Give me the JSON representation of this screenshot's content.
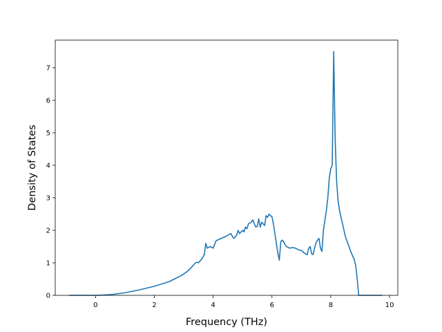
{
  "chart_data": {
    "type": "line",
    "title": "",
    "xlabel": "Frequency (THz)",
    "ylabel": "Density of States",
    "xlim": [
      -1.37,
      10.28
    ],
    "ylim": [
      0,
      7.85
    ],
    "xticks": [
      0,
      2,
      4,
      6,
      8,
      10
    ],
    "yticks": [
      0,
      1,
      2,
      3,
      4,
      5,
      6,
      7
    ],
    "grid": false,
    "colors": {
      "line": "#1f77b4",
      "axes": "#000000",
      "background": "#ffffff"
    },
    "series": [
      {
        "x": [
          -0.9,
          -0.5,
          0.0,
          0.3,
          0.6,
          1.0,
          1.5,
          2.0,
          2.5,
          2.9,
          3.1,
          3.2,
          3.3,
          3.4,
          3.45,
          3.5,
          3.55,
          3.6,
          3.7,
          3.75,
          3.8,
          3.85,
          3.9,
          4.0,
          4.1,
          4.2,
          4.3,
          4.4,
          4.5,
          4.6,
          4.7,
          4.8,
          4.85,
          4.9,
          5.0,
          5.05,
          5.1,
          5.15,
          5.2,
          5.3,
          5.35,
          5.4,
          5.45,
          5.5,
          5.55,
          5.6,
          5.65,
          5.7,
          5.75,
          5.8,
          5.85,
          5.9,
          5.95,
          6.0,
          6.05,
          6.1,
          6.15,
          6.2,
          6.25,
          6.3,
          6.35,
          6.4,
          6.45,
          6.5,
          6.6,
          6.7,
          6.8,
          6.9,
          7.0,
          7.1,
          7.2,
          7.25,
          7.3,
          7.35,
          7.4,
          7.45,
          7.5,
          7.55,
          7.6,
          7.65,
          7.7,
          7.75,
          7.8,
          7.85,
          7.9,
          7.95,
          8.0,
          8.05,
          8.1,
          8.15,
          8.2,
          8.25,
          8.3,
          8.4,
          8.5,
          8.6,
          8.7,
          8.8,
          8.85,
          8.9,
          8.95,
          9.0,
          9.5,
          9.75
        ],
        "y": [
          0.0,
          0.0,
          0.0,
          0.01,
          0.03,
          0.08,
          0.17,
          0.28,
          0.42,
          0.6,
          0.72,
          0.8,
          0.9,
          1.0,
          1.02,
          1.0,
          1.05,
          1.1,
          1.25,
          1.6,
          1.45,
          1.48,
          1.5,
          1.45,
          1.68,
          1.72,
          1.76,
          1.8,
          1.85,
          1.9,
          1.75,
          1.85,
          2.0,
          1.9,
          2.0,
          1.95,
          2.1,
          2.05,
          2.2,
          2.25,
          2.32,
          2.2,
          2.1,
          2.12,
          2.35,
          2.1,
          2.25,
          2.2,
          2.15,
          2.45,
          2.4,
          2.5,
          2.45,
          2.42,
          2.2,
          1.9,
          1.6,
          1.3,
          1.08,
          1.65,
          1.7,
          1.65,
          1.55,
          1.5,
          1.45,
          1.47,
          1.45,
          1.4,
          1.38,
          1.3,
          1.25,
          1.45,
          1.5,
          1.28,
          1.25,
          1.45,
          1.62,
          1.7,
          1.75,
          1.45,
          1.35,
          2.0,
          2.3,
          2.6,
          3.0,
          3.6,
          3.9,
          4.0,
          7.5,
          4.8,
          3.5,
          2.9,
          2.6,
          2.2,
          1.8,
          1.55,
          1.3,
          1.1,
          0.9,
          0.5,
          0.0,
          0.0,
          0.0,
          0.0
        ]
      }
    ]
  }
}
